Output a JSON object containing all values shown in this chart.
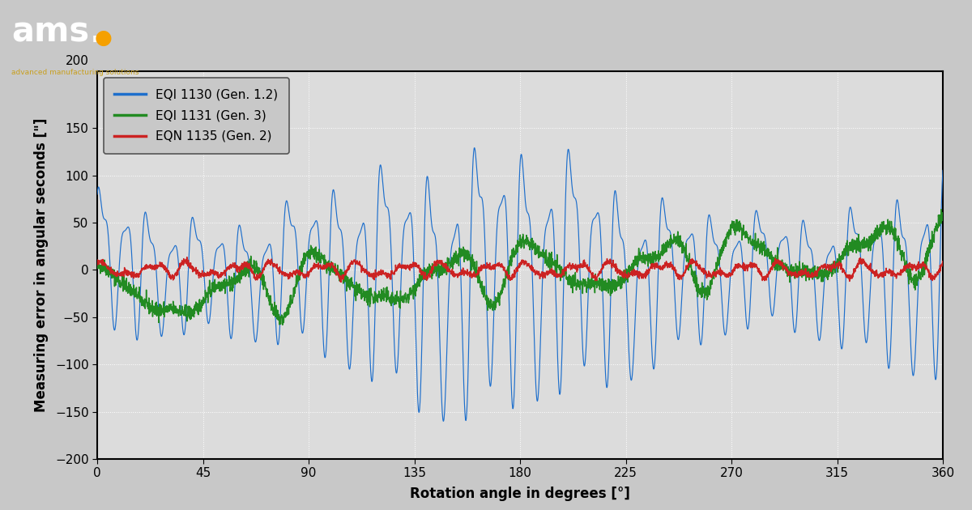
{
  "xlabel": "Rotation angle in degrees [°]",
  "ylabel": "Measuring error in angular seconds [\"]",
  "xlim": [
    0,
    360
  ],
  "ylim": [
    -200,
    210
  ],
  "xticks": [
    0,
    45,
    90,
    135,
    180,
    225,
    270,
    315,
    360
  ],
  "yticks": [
    -200,
    -150,
    -100,
    -50,
    0,
    50,
    100,
    150
  ],
  "legend": [
    {
      "label": "EQI 1130 (Gen. 1.2)",
      "color": "#1e6fcc"
    },
    {
      "label": "EQI 1131 (Gen. 3)",
      "color": "#228B22"
    },
    {
      "label": "EQN 1135 (Gen. 2)",
      "color": "#cc2222"
    }
  ],
  "bg_color": "#c8c8c8",
  "plot_bg_color": "#dcdcdc",
  "grid_color": "#ffffff",
  "seed": 42
}
